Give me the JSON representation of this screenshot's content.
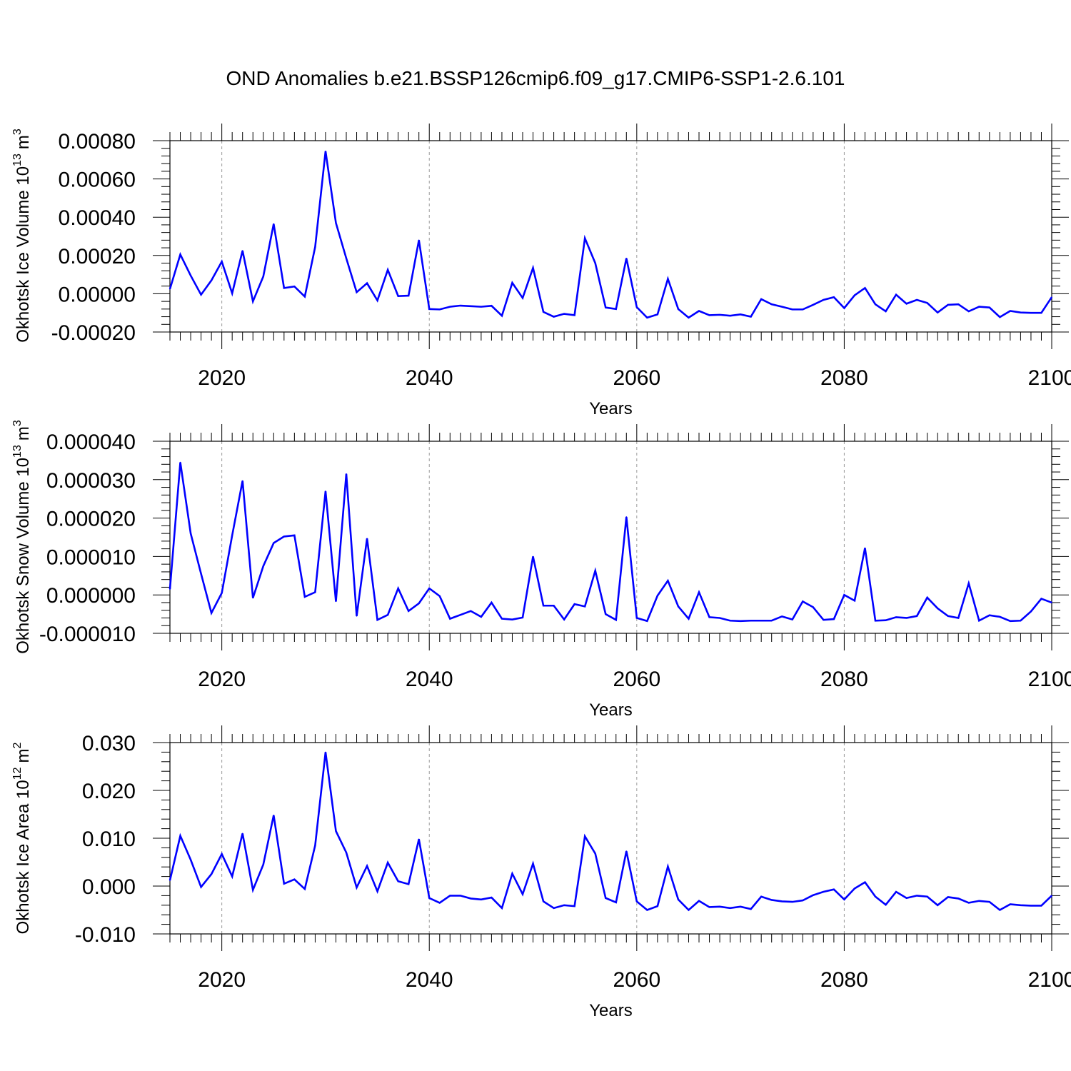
{
  "figure": {
    "title": "OND Anomalies b.e21.BSSP126cmip6.f09_g17.CMIP6-SSP1-2.6.101"
  },
  "colors": {
    "series": "#0000ff",
    "grid": "#999999",
    "axis": "#000000"
  },
  "chart_data": [
    {
      "type": "line",
      "ylabel": "Okhotsk Ice Volume 10^13 m^3",
      "ylabel_base": "Okhotsk Ice Volume 10",
      "ylabel_exp": "13",
      "ylabel_unit": "m",
      "ylabel_unit_exp": "3",
      "xlabel": "Years",
      "xlim": [
        2015,
        2100
      ],
      "ylim": [
        -0.0002,
        0.0008
      ],
      "xticks": [
        "2020",
        "2040",
        "2060",
        "2080",
        "2100"
      ],
      "yticks": [
        "-0.00020",
        "0.00000",
        "0.00020",
        "0.00040",
        "0.00060",
        "0.00080"
      ],
      "grid": "dashed vertical at major x ticks",
      "series": [
        {
          "x": [
            2015,
            2016,
            2017,
            2018,
            2019,
            2020,
            2021,
            2022,
            2023,
            2024,
            2025,
            2026,
            2027,
            2028,
            2029,
            2030,
            2031,
            2032,
            2033,
            2034,
            2035,
            2036,
            2037,
            2038,
            2039,
            2040,
            2041,
            2042,
            2043,
            2044,
            2045,
            2046,
            2047,
            2048,
            2049,
            2050,
            2051,
            2052,
            2053,
            2054,
            2055,
            2056,
            2057,
            2058,
            2059,
            2060,
            2061,
            2062,
            2063,
            2064,
            2065,
            2066,
            2067,
            2068,
            2069,
            2070,
            2071,
            2072,
            2073,
            2074,
            2075,
            2076,
            2077,
            2078,
            2079,
            2080,
            2081,
            2082,
            2083,
            2084,
            2085,
            2086,
            2087,
            2088,
            2089,
            2090,
            2091,
            2092,
            2093,
            2094,
            2095,
            2096,
            2097,
            2098,
            2099,
            2100
          ],
          "y": [
            2.5e-05,
            0.000205,
            9.5e-05,
            -5e-06,
            7e-05,
            0.000168,
            2e-06,
            0.000225,
            -4e-05,
            9e-05,
            0.000365,
            3e-05,
            3.8e-05,
            -1.5e-05,
            0.000245,
            0.000745,
            0.00037,
            0.000185,
            8e-06,
            5.5e-05,
            -3.5e-05,
            0.000125,
            -1.2e-05,
            -1e-05,
            0.00028,
            -8e-05,
            -8.2e-05,
            -6.8e-05,
            -6.2e-05,
            -6.5e-05,
            -6.8e-05,
            -6.3e-05,
            -0.000115,
            5.7e-05,
            -2.2e-05,
            0.000135,
            -9.5e-05,
            -0.00012,
            -0.000105,
            -0.000112,
            0.00029,
            0.00016,
            -7.2e-05,
            -8e-05,
            0.000185,
            -7e-05,
            -0.000125,
            -0.000108,
            7.8e-05,
            -8e-05,
            -0.000125,
            -9e-05,
            -0.000112,
            -0.00011,
            -0.000115,
            -0.000108,
            -0.00012,
            -2.8e-05,
            -5.5e-05,
            -6.8e-05,
            -8.2e-05,
            -8.2e-05,
            -5.8e-05,
            -3.2e-05,
            -1.8e-05,
            -7.5e-05,
            -8e-06,
            3e-05,
            -5.5e-05,
            -9.2e-05,
            -5e-06,
            -5.2e-05,
            -3.2e-05,
            -4.8e-05,
            -9.8e-05,
            -5.8e-05,
            -5.5e-05,
            -9.2e-05,
            -6.8e-05,
            -7.2e-05,
            -0.000122,
            -9e-05,
            -9.8e-05,
            -0.0001,
            -0.0001,
            -1.8e-05
          ]
        }
      ]
    },
    {
      "type": "line",
      "ylabel": "Okhotsk Snow Volume 10^13 m^3",
      "ylabel_base": "Okhotsk Snow Volume 10",
      "ylabel_exp": "13",
      "ylabel_unit": "m",
      "ylabel_unit_exp": "3",
      "xlabel": "Years",
      "xlim": [
        2015,
        2100
      ],
      "ylim": [
        -1e-05,
        4e-05
      ],
      "xticks": [
        "2020",
        "2040",
        "2060",
        "2080",
        "2100"
      ],
      "yticks": [
        "-0.000010",
        "0.000000",
        "0.000010",
        "0.000020",
        "0.000030",
        "0.000040"
      ],
      "grid": "dashed vertical at major x ticks",
      "series": [
        {
          "x": [
            2015,
            2016,
            2017,
            2018,
            2019,
            2020,
            2021,
            2022,
            2023,
            2024,
            2025,
            2026,
            2027,
            2028,
            2029,
            2030,
            2031,
            2032,
            2033,
            2034,
            2035,
            2036,
            2037,
            2038,
            2039,
            2040,
            2041,
            2042,
            2043,
            2044,
            2045,
            2046,
            2047,
            2048,
            2049,
            2050,
            2051,
            2052,
            2053,
            2054,
            2055,
            2056,
            2057,
            2058,
            2059,
            2060,
            2061,
            2062,
            2063,
            2064,
            2065,
            2066,
            2067,
            2068,
            2069,
            2070,
            2071,
            2072,
            2073,
            2074,
            2075,
            2076,
            2077,
            2078,
            2079,
            2080,
            2081,
            2082,
            2083,
            2084,
            2085,
            2086,
            2087,
            2088,
            2089,
            2090,
            2091,
            2092,
            2093,
            2094,
            2095,
            2096,
            2097,
            2098,
            2099,
            2100
          ],
          "y": [
            1.5e-06,
            3.45e-05,
            1.6e-05,
            5.5e-06,
            -4.7e-06,
            5e-07,
            1.55e-05,
            2.97e-05,
            -8e-07,
            7.5e-06,
            1.35e-05,
            1.52e-05,
            1.55e-05,
            -5e-07,
            7e-07,
            2.7e-05,
            -1.7e-06,
            3.15e-05,
            -5.5e-06,
            1.47e-05,
            -6.5e-06,
            -5.2e-06,
            1.7e-06,
            -4.2e-06,
            -2.2e-06,
            1.7e-06,
            -3e-07,
            -6.2e-06,
            -5.2e-06,
            -4.2e-06,
            -5.7e-06,
            -2e-06,
            -6.2e-06,
            -6.4e-06,
            -5.9e-06,
            1e-05,
            -2.8e-06,
            -2.8e-06,
            -6.4e-06,
            -2.4e-06,
            -3e-06,
            6.3e-06,
            -5e-06,
            -6.5e-06,
            2.03e-05,
            -6e-06,
            -6.8e-06,
            -2e-07,
            3.7e-06,
            -3e-06,
            -6.2e-06,
            7e-07,
            -5.8e-06,
            -6e-06,
            -6.7e-06,
            -6.8e-06,
            -6.7e-06,
            -6.7e-06,
            -6.7e-06,
            -5.6e-06,
            -6.4e-06,
            -1.7e-06,
            -3.2e-06,
            -6.5e-06,
            -6.3e-06,
            0.0,
            -1.5e-06,
            1.22e-05,
            -6.7e-06,
            -6.6e-06,
            -5.8e-06,
            -6e-06,
            -5.5e-06,
            -7e-07,
            -3.5e-06,
            -5.5e-06,
            -6e-06,
            3e-06,
            -6.7e-06,
            -5.3e-06,
            -5.7e-06,
            -6.8e-06,
            -6.7e-06,
            -4.3e-06,
            -1e-06,
            -2e-06
          ]
        }
      ]
    },
    {
      "type": "line",
      "ylabel": "Okhotsk Ice Area 10^12 m^2",
      "ylabel_base": "Okhotsk Ice Area 10",
      "ylabel_exp": "12",
      "ylabel_unit": "m",
      "ylabel_unit_exp": "2",
      "xlabel": "Years",
      "xlim": [
        2015,
        2100
      ],
      "ylim": [
        -0.01,
        0.03
      ],
      "xticks": [
        "2020",
        "2040",
        "2060",
        "2080",
        "2100"
      ],
      "yticks": [
        "-0.010",
        "0.000",
        "0.010",
        "0.020",
        "0.030"
      ],
      "grid": "dashed vertical at major x ticks",
      "series": [
        {
          "x": [
            2015,
            2016,
            2017,
            2018,
            2019,
            2020,
            2021,
            2022,
            2023,
            2024,
            2025,
            2026,
            2027,
            2028,
            2029,
            2030,
            2031,
            2032,
            2033,
            2034,
            2035,
            2036,
            2037,
            2038,
            2039,
            2040,
            2041,
            2042,
            2043,
            2044,
            2045,
            2046,
            2047,
            2048,
            2049,
            2050,
            2051,
            2052,
            2053,
            2054,
            2055,
            2056,
            2057,
            2058,
            2059,
            2060,
            2061,
            2062,
            2063,
            2064,
            2065,
            2066,
            2067,
            2068,
            2069,
            2070,
            2071,
            2072,
            2073,
            2074,
            2075,
            2076,
            2077,
            2078,
            2079,
            2080,
            2081,
            2082,
            2083,
            2084,
            2085,
            2086,
            2087,
            2088,
            2089,
            2090,
            2091,
            2092,
            2093,
            2094,
            2095,
            2096,
            2097,
            2098,
            2099,
            2100
          ],
          "y": [
            0.0012,
            0.0105,
            0.0055,
            -0.0002,
            0.0025,
            0.0067,
            0.002,
            0.011,
            -0.0008,
            0.0045,
            0.0148,
            0.0005,
            0.0014,
            -0.0006,
            0.0085,
            0.028,
            0.0115,
            0.007,
            -0.0003,
            0.0042,
            -0.0011,
            0.0049,
            0.001,
            0.0004,
            0.0098,
            -0.0025,
            -0.0035,
            -0.002,
            -0.002,
            -0.0026,
            -0.0028,
            -0.0024,
            -0.0046,
            0.0026,
            -0.0017,
            0.0047,
            -0.0032,
            -0.0046,
            -0.004,
            -0.0042,
            0.0104,
            0.0068,
            -0.0025,
            -0.0034,
            0.0073,
            -0.0032,
            -0.005,
            -0.0042,
            0.0041,
            -0.0028,
            -0.005,
            -0.0031,
            -0.0044,
            -0.0043,
            -0.0046,
            -0.0043,
            -0.0048,
            -0.0022,
            -0.0029,
            -0.0032,
            -0.0033,
            -0.003,
            -0.0019,
            -0.0012,
            -0.0007,
            -0.0028,
            -0.0005,
            0.0008,
            -0.0022,
            -0.0039,
            -0.0012,
            -0.0025,
            -0.002,
            -0.0022,
            -0.004,
            -0.0023,
            -0.0026,
            -0.0035,
            -0.0031,
            -0.0033,
            -0.005,
            -0.0038,
            -0.004,
            -0.0041,
            -0.0041,
            -0.002
          ]
        }
      ]
    }
  ]
}
